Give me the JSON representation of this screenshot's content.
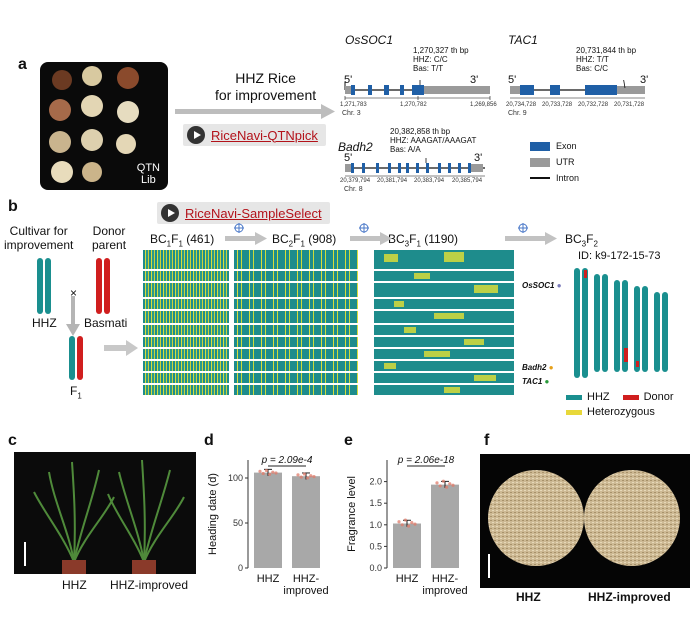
{
  "panel_a": {
    "label": "a",
    "qtn_lib": "QTN\nLib",
    "hhz_line1": "HHZ Rice",
    "hhz_line2": "for improvement",
    "button": "RiceNavi-QTNpick",
    "genes": [
      {
        "name": "OsSOC1",
        "bp": "1,270,327 th bp",
        "hhz": "HHZ: C/C",
        "bas": "Bas: T/T",
        "left": "5'",
        "right": "3'",
        "chr": "Chr. 3",
        "ticks": [
          "1,271,783",
          "1,270,782",
          "1,269,856"
        ]
      },
      {
        "name": "TAC1",
        "bp": "20,731,844 th bp",
        "hhz": "HHZ: T/T",
        "bas": "Bas: C/C",
        "left": "5'",
        "right": "3'",
        "chr": "Chr. 9",
        "ticks": [
          "20,734,728",
          "20,733,728",
          "20,732,728",
          "20,731,728"
        ]
      },
      {
        "name": "Badh2",
        "bp": "20,382,858 th bp",
        "hhz": "HHZ: AAAGAT/AAAGAT",
        "bas": "Bas: A/A",
        "left": "5'",
        "right": "3'",
        "chr": "Chr. 8",
        "ticks": [
          "20,379,794",
          "20,381,794",
          "20,383,794",
          "20,385,794"
        ]
      }
    ],
    "legend": [
      {
        "label": "Exon",
        "color": "#1f5fa6"
      },
      {
        "label": "UTR",
        "color": "#9a9a9a"
      },
      {
        "label": "Intron",
        "color": "#111111"
      }
    ]
  },
  "panel_b": {
    "label": "b",
    "button": "RiceNavi-SampleSelect",
    "cultivar": "Cultivar for\nimprovement",
    "donor": "Donor\nparent",
    "cross": "×",
    "hhz": "HHZ",
    "basmati": "Basmati",
    "f1": "F",
    "f1_sub": "1",
    "generations": [
      {
        "label": "BC",
        "sub1": "1",
        "mid": "F",
        "sub2": "1",
        "count": " (461)"
      },
      {
        "label": "BC",
        "sub1": "2",
        "mid": "F",
        "sub2": "1",
        "count": " (908)"
      },
      {
        "label": "BC",
        "sub1": "3",
        "mid": "F",
        "sub2": "1",
        "count": " (1190)"
      },
      {
        "label": "BC",
        "sub1": "3",
        "mid": "F",
        "sub2": "2",
        "count": ""
      }
    ],
    "id_text": "ID: k9-172-15-73",
    "markers": [
      "OsSOC1",
      "Badh2",
      "TAC1"
    ],
    "legend": [
      {
        "label": "HHZ",
        "color": "#1a8f8f"
      },
      {
        "label": "Donor",
        "color": "#d01e1e"
      },
      {
        "label": "Heterozygous",
        "color": "#e8d83a"
      }
    ]
  },
  "panel_c": {
    "label": "c",
    "left": "HHZ",
    "right": "HHZ-improved"
  },
  "panel_d": {
    "label": "d",
    "chart_data": {
      "type": "bar",
      "categories": [
        "HHZ",
        "HHZ-\nimproved"
      ],
      "values": [
        106,
        102
      ],
      "ylabel": "Heading date (d)",
      "ylim": [
        0,
        120
      ],
      "yticks": [
        "0",
        "50",
        "100"
      ],
      "pvalue": "p = 2.09e-4"
    }
  },
  "panel_e": {
    "label": "e",
    "chart_data": {
      "type": "bar",
      "categories": [
        "HHZ",
        "HHZ-\nimproved"
      ],
      "values": [
        1.03,
        1.93
      ],
      "ylabel": "Fragrance level",
      "ylim": [
        0,
        2.5
      ],
      "yticks": [
        "0.0",
        "0.5",
        "1.0",
        "1.5",
        "2.0"
      ],
      "pvalue": "p = 2.06e-18"
    }
  },
  "panel_f": {
    "label": "f",
    "left": "HHZ",
    "right": "HHZ-improved"
  }
}
